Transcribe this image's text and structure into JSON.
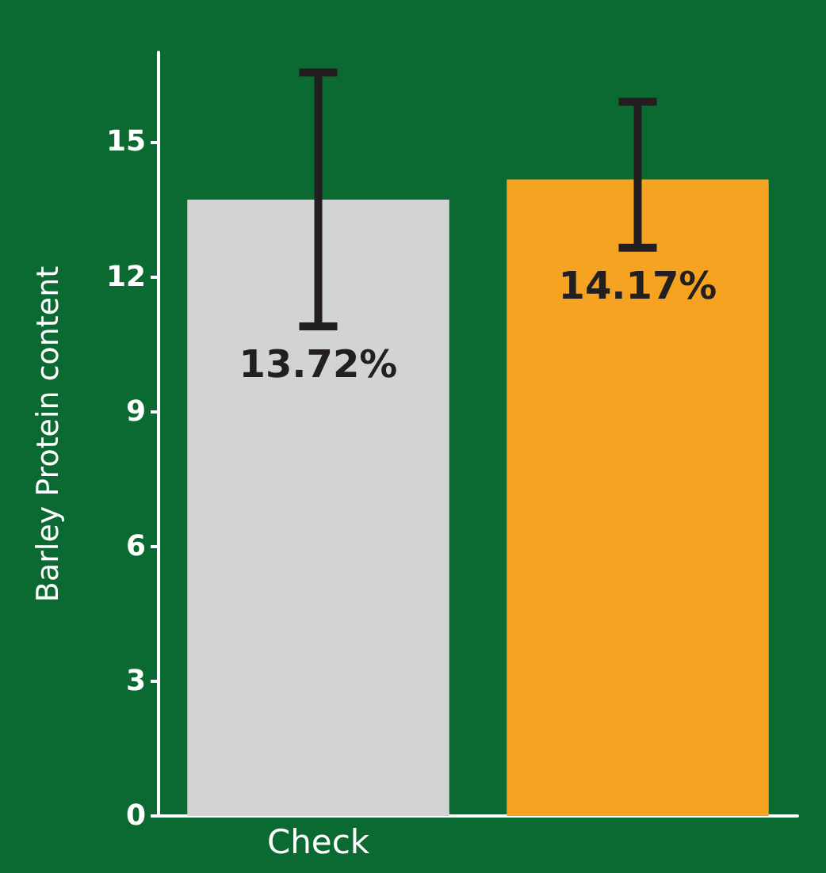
{
  "chart_data": {
    "type": "bar",
    "ylabel": "Barley Protein content",
    "categories": [
      "Check",
      null
    ],
    "values": [
      13.72,
      14.17
    ],
    "colors": [
      "#d1d3d4",
      "#f6a321"
    ],
    "errors": [
      [
        10.9,
        16.55
      ],
      [
        12.65,
        15.9
      ]
    ],
    "value_labels": [
      "13.72%",
      "14.17%"
    ],
    "ylim": [
      0,
      17
    ],
    "yticks": [
      0,
      3,
      6,
      9,
      12,
      15
    ],
    "grid": false
  }
}
